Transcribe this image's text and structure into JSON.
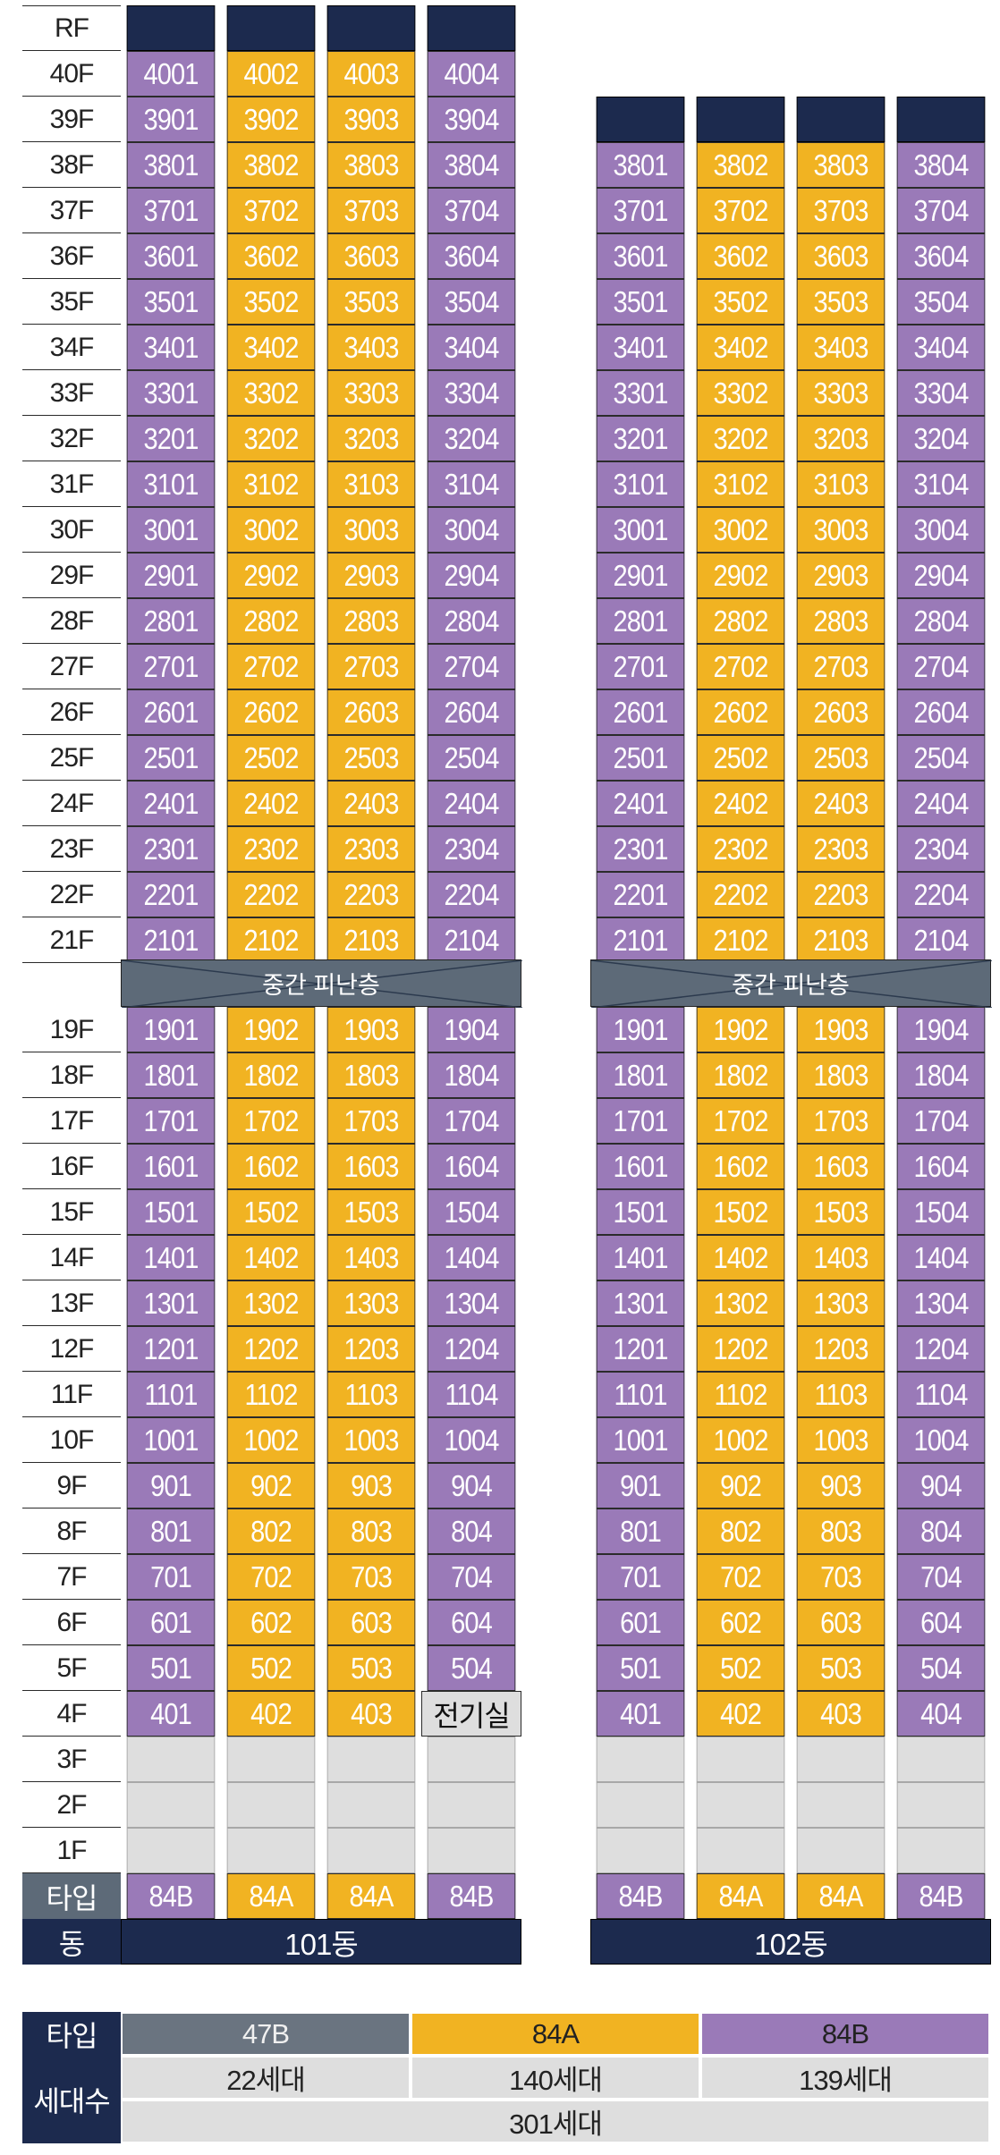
{
  "colors": {
    "navy": "#1c2a4e",
    "purple": "#9a7ab8",
    "gold": "#f1b322",
    "gray_band": "#5d6a78",
    "empty": "#dedede",
    "legend_47b": "#6a7480"
  },
  "floors_top": [
    "RF",
    "40F",
    "39F",
    "38F",
    "37F",
    "36F",
    "35F",
    "34F",
    "33F",
    "32F",
    "31F",
    "30F",
    "29F",
    "28F",
    "27F",
    "26F",
    "25F",
    "24F",
    "23F",
    "22F",
    "21F"
  ],
  "floors_bottom": [
    "19F",
    "18F",
    "17F",
    "16F",
    "15F",
    "14F",
    "13F",
    "12F",
    "11F",
    "10F",
    "9F",
    "8F",
    "7F",
    "6F",
    "5F",
    "4F",
    "3F",
    "2F",
    "1F"
  ],
  "refuge_label": "중간 피난층",
  "electric_room_label": "전기실",
  "type_row_label": "타입",
  "dong_row_label": "동",
  "buildings": [
    {
      "name": "101동",
      "types": [
        "84B",
        "84A",
        "84A",
        "84B"
      ],
      "top_floor": 40
    },
    {
      "name": "102동",
      "types": [
        "84B",
        "84A",
        "84A",
        "84B"
      ],
      "top_floor": 38
    }
  ],
  "legend": {
    "type_label": "타입",
    "households_label": "세대수",
    "types": [
      "47B",
      "84A",
      "84B"
    ],
    "counts": [
      "22세대",
      "140세대",
      "139세대"
    ],
    "total": "301세대"
  }
}
